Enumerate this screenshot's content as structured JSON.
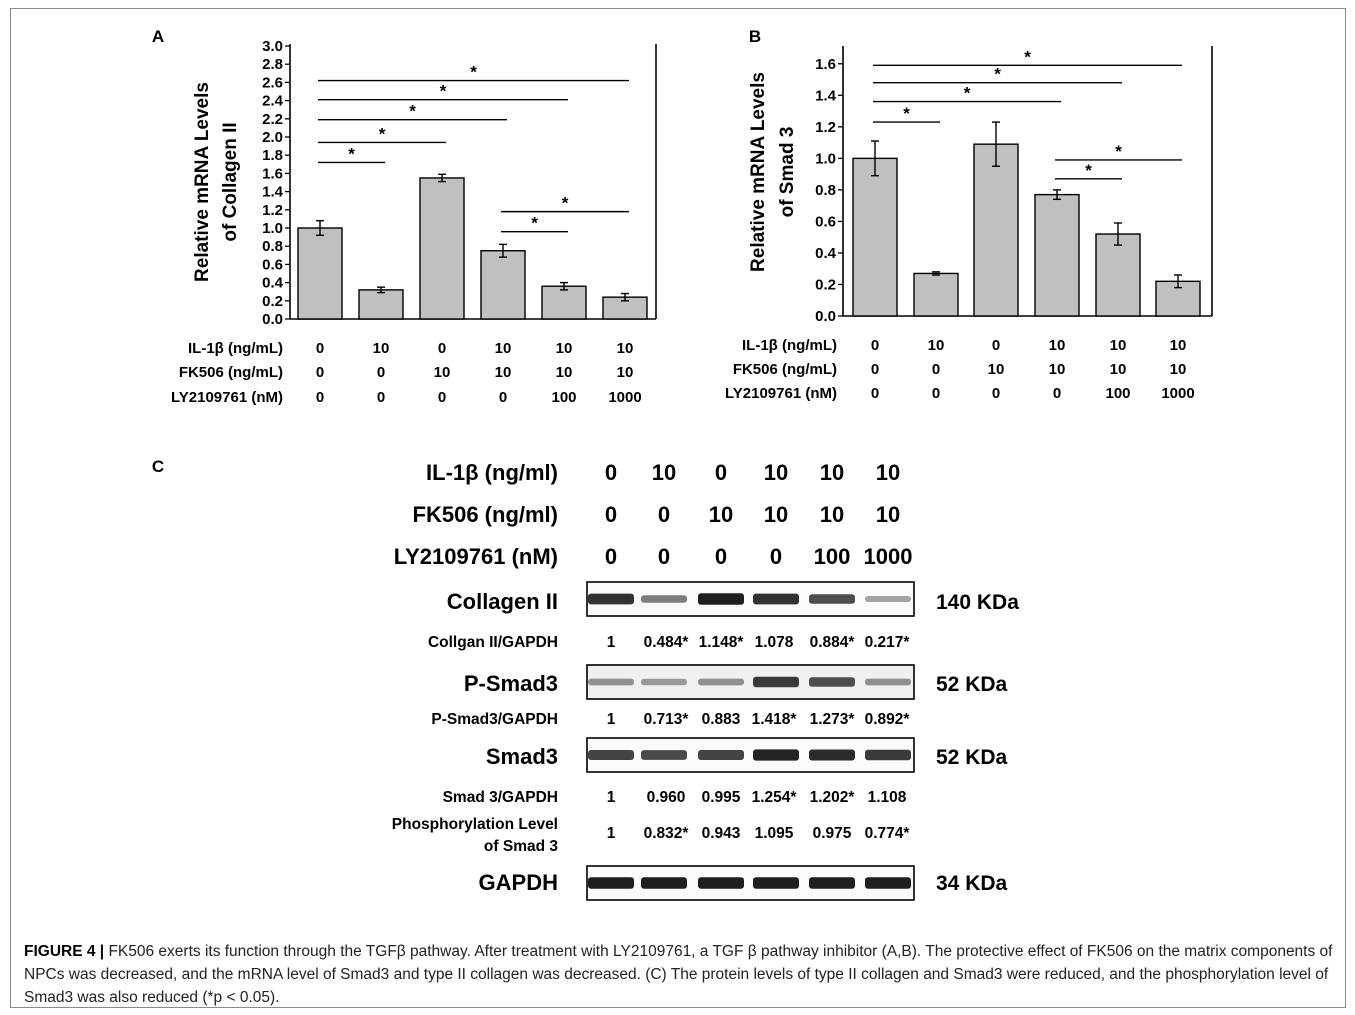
{
  "caption": {
    "label": "FIGURE 4 |",
    "text": "FK506 exerts its function through the TGFβ pathway. After treatment with LY2109761, a TGF β pathway inhibitor (A,B). The protective effect of FK506 on the matrix components of NPCs was decreased, and the mRNA level of Smad3 and type II collagen was decreased. (C) The protein levels of type II collagen and Smad3 were reduced, and the phosphorylation level of Smad3 was also reduced (*p < 0.05)."
  },
  "treatments_mrna": {
    "rows": [
      {
        "label": "IL-1β (ng/mL)",
        "values": [
          "0",
          "10",
          "0",
          "10",
          "10",
          "10"
        ]
      },
      {
        "label": "FK506 (ng/mL)",
        "values": [
          "0",
          "0",
          "10",
          "10",
          "10",
          "10"
        ]
      },
      {
        "label": "LY2109761 (nM)",
        "values": [
          "0",
          "0",
          "0",
          "0",
          "100",
          "1000"
        ]
      }
    ]
  },
  "chart_data": [
    {
      "panel": "A",
      "type": "bar",
      "ylabel_line1": "Relative mRNA Levels",
      "ylabel_line2": "of Collagen II",
      "ylim": [
        0,
        3.0
      ],
      "yticks": [
        0.0,
        0.2,
        0.4,
        0.6,
        0.8,
        1.0,
        1.2,
        1.4,
        1.6,
        1.8,
        2.0,
        2.2,
        2.4,
        2.6,
        2.8,
        3.0
      ],
      "ytick_labels": [
        "0.0",
        "0.2",
        "0.4",
        "0.6",
        "0.8",
        "1.0",
        "1.2",
        "1.4",
        "1.6",
        "1.8",
        "2.0",
        "2.2",
        "2.4",
        "2.6",
        "2.8",
        "3.0"
      ],
      "values": [
        1.0,
        0.32,
        1.55,
        0.75,
        0.36,
        0.24
      ],
      "errors": [
        0.08,
        0.03,
        0.04,
        0.07,
        0.04,
        0.04
      ],
      "bar_color": "#c0c0c0",
      "significance": [
        {
          "from": 0,
          "to": 5,
          "y": 2.62,
          "label": "*"
        },
        {
          "from": 0,
          "to": 4,
          "y": 2.41,
          "label": "*"
        },
        {
          "from": 0,
          "to": 3,
          "y": 2.19,
          "label": "*"
        },
        {
          "from": 0,
          "to": 2,
          "y": 1.94,
          "label": "*"
        },
        {
          "from": 0,
          "to": 1,
          "y": 1.72,
          "label": "*"
        },
        {
          "from": 3,
          "to": 5,
          "y": 1.18,
          "label": "*"
        },
        {
          "from": 3,
          "to": 4,
          "y": 0.96,
          "label": "*"
        }
      ]
    },
    {
      "panel": "B",
      "type": "bar",
      "ylabel_line1": "Relative mRNA Levels",
      "ylabel_line2": "of Smad 3",
      "ylim": [
        0,
        1.7
      ],
      "yticks": [
        0.0,
        0.2,
        0.4,
        0.6,
        0.8,
        1.0,
        1.2,
        1.4,
        1.6
      ],
      "ytick_labels": [
        "0.0",
        "0.2",
        "0.4",
        "0.6",
        "0.8",
        "1.0",
        "1.2",
        "1.4",
        "1.6"
      ],
      "values": [
        1.0,
        0.27,
        1.09,
        0.77,
        0.52,
        0.22
      ],
      "errors": [
        0.11,
        0.01,
        0.14,
        0.03,
        0.07,
        0.04
      ],
      "bar_color": "#c0c0c0",
      "significance": [
        {
          "from": 0,
          "to": 5,
          "y": 1.59,
          "label": "*"
        },
        {
          "from": 0,
          "to": 4,
          "y": 1.48,
          "label": "*"
        },
        {
          "from": 0,
          "to": 3,
          "y": 1.36,
          "label": "*"
        },
        {
          "from": 0,
          "to": 1,
          "y": 1.23,
          "label": "*"
        },
        {
          "from": 3,
          "to": 5,
          "y": 0.99,
          "label": "*"
        },
        {
          "from": 3,
          "to": 4,
          "y": 0.87,
          "label": "*"
        }
      ]
    }
  ],
  "western": {
    "panel": "C",
    "treatments": [
      {
        "label": "IL-1β (ng/ml)",
        "values": [
          "0",
          "10",
          "0",
          "10",
          "10",
          "10"
        ]
      },
      {
        "label": "FK506 (ng/ml)",
        "values": [
          "0",
          "0",
          "10",
          "10",
          "10",
          "10"
        ]
      },
      {
        "label": "LY2109761 (nM)",
        "values": [
          "0",
          "0",
          "0",
          "0",
          "100",
          "1000"
        ]
      }
    ],
    "blots": [
      {
        "label": "Collagen II",
        "size": "140 KDa",
        "intensity": [
          0.85,
          0.45,
          0.95,
          0.85,
          0.7,
          0.25
        ]
      },
      {
        "label": "P-Smad3",
        "size": "52 KDa",
        "intensity": [
          0.35,
          0.3,
          0.35,
          0.8,
          0.7,
          0.35
        ]
      },
      {
        "label": "Smad3",
        "size": "52 KDa",
        "intensity": [
          0.75,
          0.72,
          0.75,
          0.92,
          0.88,
          0.8
        ]
      },
      {
        "label": "GAPDH",
        "size": "34 KDa",
        "intensity": [
          0.95,
          0.95,
          0.95,
          0.95,
          0.95,
          0.95
        ]
      }
    ],
    "ratios": [
      {
        "label": "Collgan II/GAPDH",
        "values": [
          "1",
          "0.484*",
          "1.148*",
          "1.078",
          "0.884*",
          "0.217*"
        ]
      },
      {
        "label": "P-Smad3/GAPDH",
        "values": [
          "1",
          "0.713*",
          "0.883",
          "1.418*",
          "1.273*",
          "0.892*"
        ]
      },
      {
        "label": "Smad 3/GAPDH",
        "values": [
          "1",
          "0.960",
          "0.995",
          "1.254*",
          "1.202*",
          "1.108"
        ]
      },
      {
        "label_line1": "Phosphorylation Level",
        "label_line2": "of Smad 3",
        "values": [
          "1",
          "0.832*",
          "0.943",
          "1.095",
          "0.975",
          "0.774*"
        ]
      }
    ]
  }
}
